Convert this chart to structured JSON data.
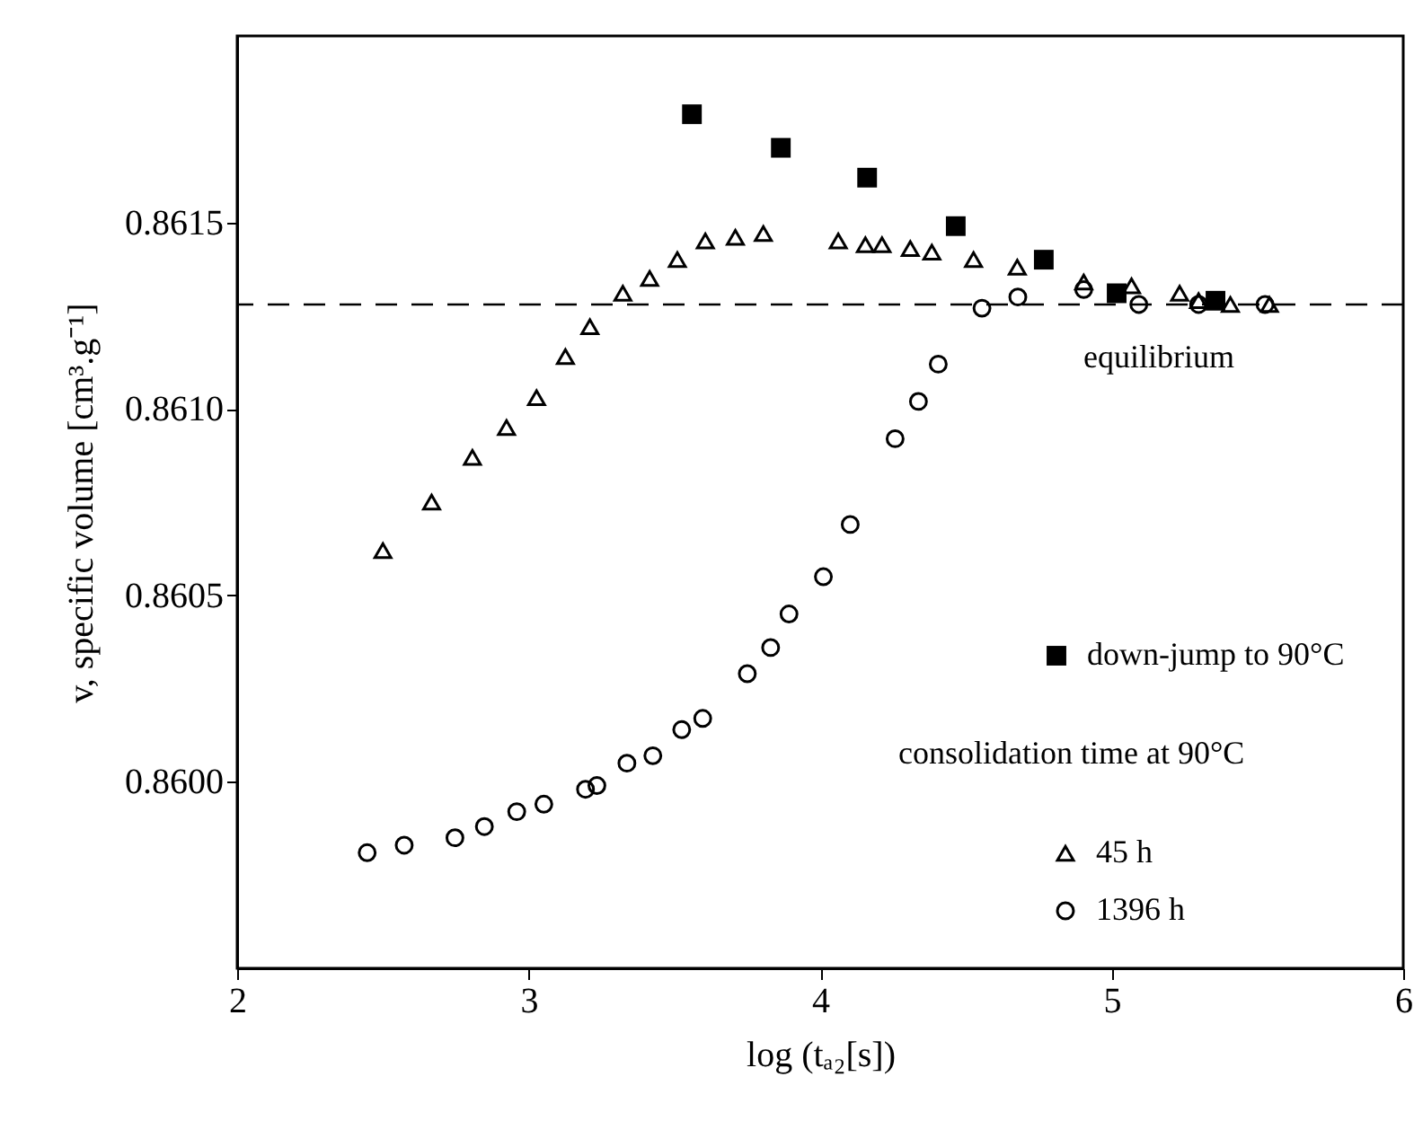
{
  "chart_data": {
    "type": "scatter",
    "xlabel": "log (tₐ₂[s])",
    "ylabel": "v, specific volume [cm³.g⁻¹]",
    "legend_title": "consolidation time at 90°C",
    "legend": "bottom right",
    "grid": false,
    "xlim": [
      2,
      6
    ],
    "xticks": [
      2,
      3,
      4,
      5,
      6
    ],
    "ylim": [
      0.8595,
      0.862
    ],
    "yticks": [
      {
        "value": 0.86,
        "label": "0.8600"
      },
      0.8605,
      {
        "value": 0.861,
        "label": "0.8610"
      },
      0.8615
    ],
    "ref_lines": [
      {
        "axis": "y",
        "value": 0.86128,
        "label": "equilibrium",
        "line_style": "dashed",
        "color": "#000000"
      }
    ],
    "series": [
      {
        "name": "down-jump to 90°C",
        "color": "#000000",
        "marker": "square",
        "x": [
          3.56,
          3.865,
          4.161,
          4.465,
          4.767,
          5.017,
          5.356
        ],
        "values": [
          0.86179,
          0.8617,
          0.86162,
          0.86149,
          0.8614,
          0.86131,
          0.86129
        ]
      },
      {
        "name": "45 h",
        "color": "#000000",
        "marker": "triangle",
        "x": [
          2.5,
          2.667,
          2.807,
          2.924,
          3.027,
          3.126,
          3.21,
          3.323,
          3.415,
          3.51,
          3.606,
          3.709,
          3.805,
          4.062,
          4.155,
          4.212,
          4.309,
          4.383,
          4.526,
          4.676,
          4.904,
          5.068,
          5.233,
          5.298,
          5.407,
          5.541
        ],
        "values": [
          0.86062,
          0.86075,
          0.86087,
          0.86095,
          0.86103,
          0.86114,
          0.86122,
          0.86131,
          0.86135,
          0.8614,
          0.86145,
          0.86146,
          0.86147,
          0.86145,
          0.86144,
          0.86144,
          0.86143,
          0.86142,
          0.8614,
          0.86138,
          0.86134,
          0.86133,
          0.86131,
          0.86129,
          0.86128,
          0.86128
        ]
      },
      {
        "name": "1396 h",
        "color": "#000000",
        "marker": "circle",
        "x": [
          2.446,
          2.573,
          2.747,
          2.848,
          2.959,
          3.052,
          3.195,
          3.234,
          3.337,
          3.426,
          3.525,
          3.597,
          3.75,
          3.83,
          3.893,
          4.011,
          4.103,
          4.257,
          4.337,
          4.405,
          4.555,
          4.678,
          4.904,
          5.093,
          5.298,
          5.526
        ],
        "values": [
          0.85981,
          0.85983,
          0.85985,
          0.85988,
          0.85992,
          0.85994,
          0.85998,
          0.85999,
          0.86005,
          0.86007,
          0.86014,
          0.86017,
          0.86029,
          0.86036,
          0.86045,
          0.86055,
          0.86069,
          0.86092,
          0.86102,
          0.86112,
          0.86127,
          0.8613,
          0.86132,
          0.86128,
          0.86128,
          0.86128
        ]
      }
    ]
  }
}
